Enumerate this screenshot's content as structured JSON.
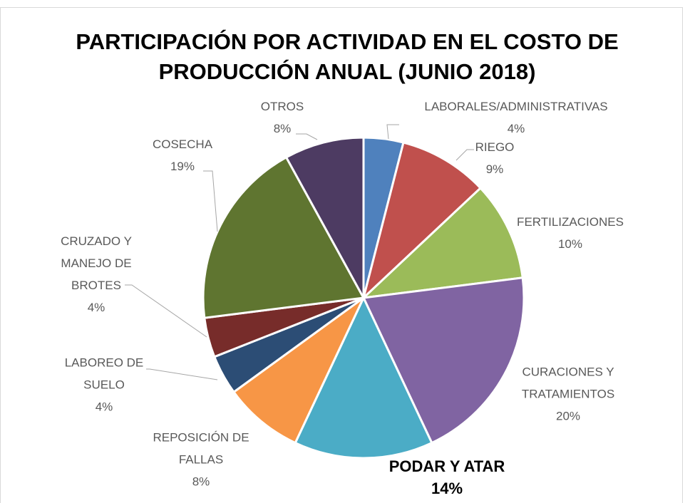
{
  "chart_data": {
    "type": "pie",
    "title": "PARTICIPACIÓN POR ACTIVIDAD EN EL COSTO DE PRODUCCIÓN ANUAL (JUNIO 2018)",
    "categories": [
      "LABORALES/ADMINISTRATIVAS",
      "RIEGO",
      "FERTILIZACIONES",
      "CURACIONES Y\nTRATAMIENTOS",
      "PODAR Y ATAR",
      "REPOSICIÓN DE\nFALLAS",
      "LABOREO DE\nSUELO",
      "CRUZADO Y\nMANEJO DE\nBROTES",
      "COSECHA",
      "OTROS"
    ],
    "values": [
      4,
      9,
      10,
      20,
      14,
      8,
      4,
      4,
      19,
      8
    ],
    "value_labels": [
      "4%",
      "9%",
      "10%",
      "20%",
      "14%",
      "8%",
      "4%",
      "4%",
      "19%",
      "8%"
    ],
    "colors": [
      "#4f81bd",
      "#c0504d",
      "#9bbb59",
      "#8064a2",
      "#4bacc6",
      "#f79646",
      "#2c4d75",
      "#772c2a",
      "#5f7530",
      "#4d3b62"
    ]
  }
}
